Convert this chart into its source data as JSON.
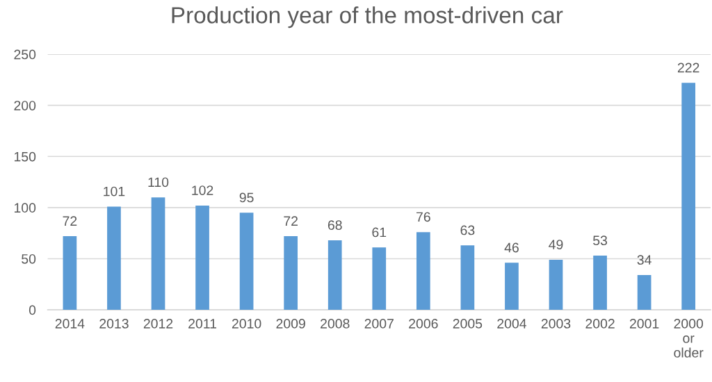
{
  "chart_data": {
    "type": "bar",
    "title": "Production year of the most-driven car",
    "categories": [
      "2014",
      "2013",
      "2012",
      "2011",
      "2010",
      "2009",
      "2008",
      "2007",
      "2006",
      "2005",
      "2004",
      "2003",
      "2002",
      "2001",
      "2000\nor\nolder"
    ],
    "values": [
      72,
      101,
      110,
      102,
      95,
      72,
      68,
      61,
      76,
      63,
      46,
      49,
      53,
      34,
      222
    ],
    "color": "#5b9bd5",
    "ylim": [
      0,
      250
    ],
    "yticks": [
      0,
      50,
      100,
      150,
      200,
      250
    ],
    "grid": "y",
    "data_labels": true
  }
}
